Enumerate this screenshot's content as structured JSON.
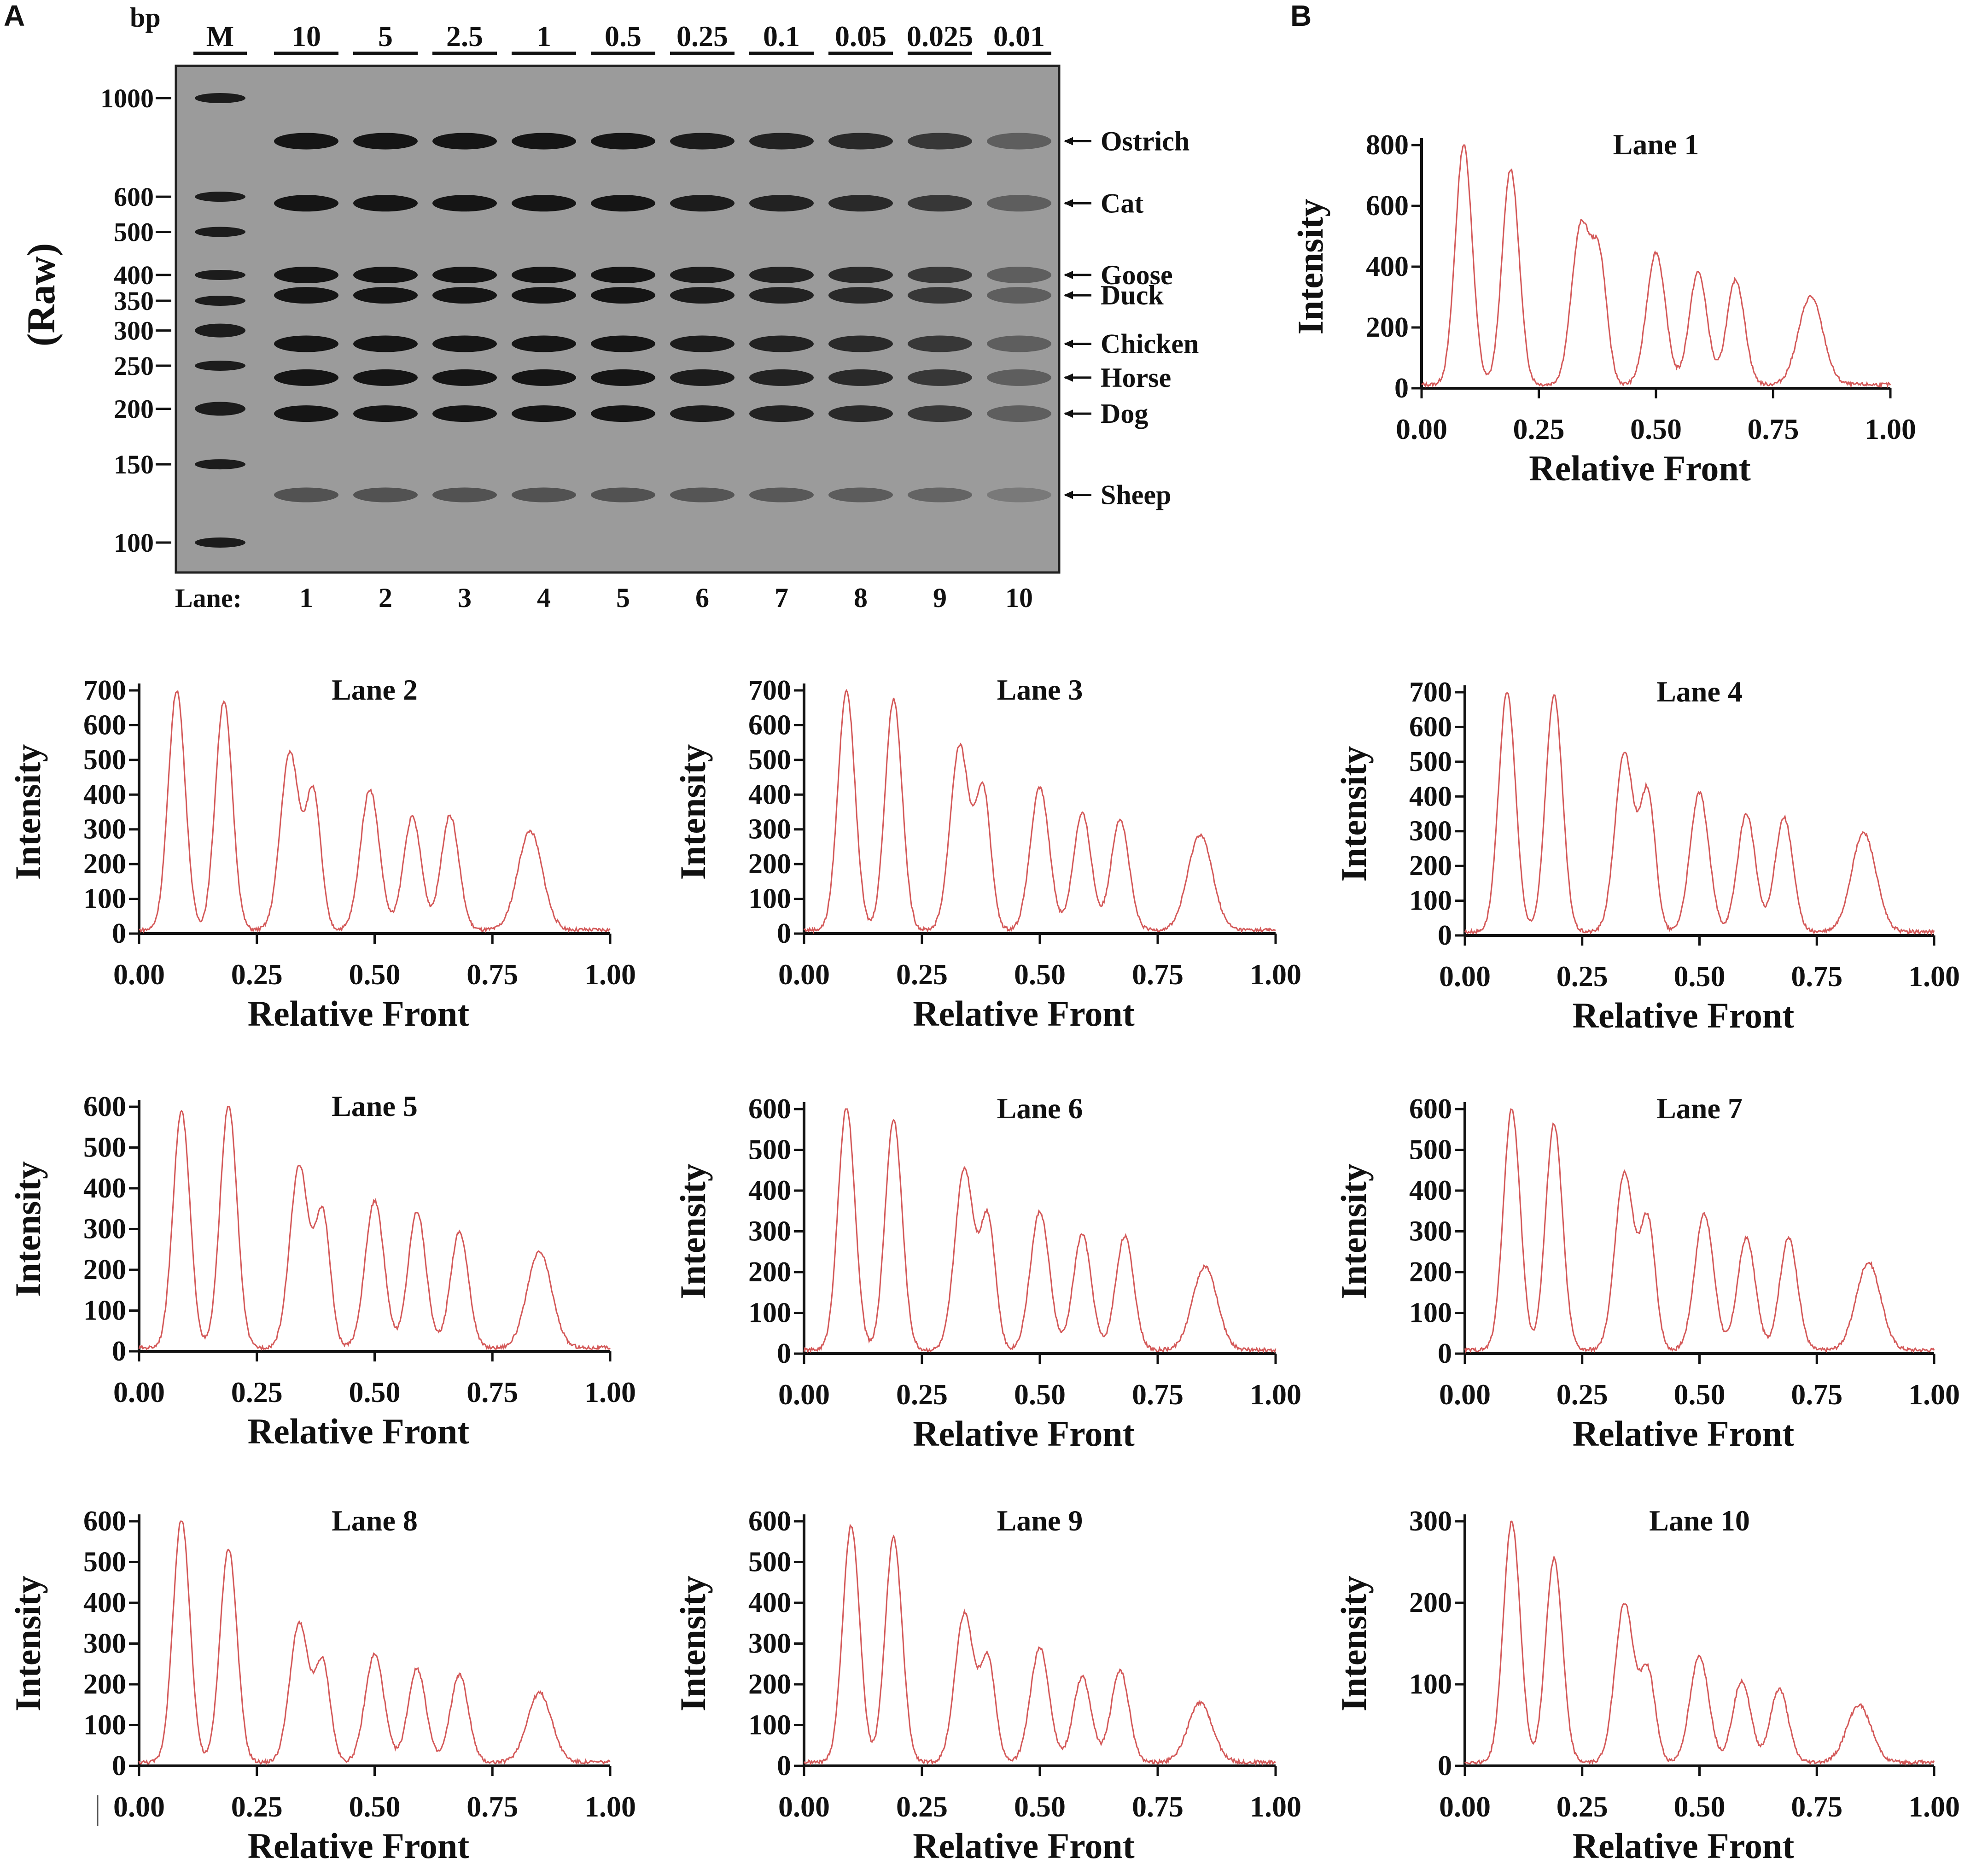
{
  "panel_a": {
    "letter": "A",
    "bp_label": "bp",
    "side_label": "(Raw)",
    "lane_prefix": "Lane:",
    "marker_label": "M",
    "concentrations": [
      "10",
      "5",
      "2.5",
      "1",
      "0.5",
      "0.25",
      "0.1",
      "0.05",
      "0.025",
      "0.01"
    ],
    "lane_numbers": [
      "1",
      "2",
      "3",
      "4",
      "5",
      "6",
      "7",
      "8",
      "9",
      "10"
    ],
    "ladder_bp": [
      1000,
      600,
      500,
      400,
      350,
      300,
      250,
      200,
      150,
      100
    ],
    "ladder_labels": [
      "1000",
      "600",
      "500",
      "400",
      "350",
      "300",
      "250",
      "200",
      "150",
      "100"
    ],
    "species_bands": [
      {
        "name": "Ostrich",
        "bp": 800
      },
      {
        "name": "Cat",
        "bp": 580
      },
      {
        "name": "Goose",
        "bp": 400
      },
      {
        "name": "Duck",
        "bp": 360
      },
      {
        "name": "Chicken",
        "bp": 280
      },
      {
        "name": "Horse",
        "bp": 235
      },
      {
        "name": "Dog",
        "bp": 195
      },
      {
        "name": "Sheep",
        "bp": 128
      }
    ],
    "colors": {
      "gel_background": "#9b9b9b",
      "band": "#151515"
    }
  },
  "panel_b": {
    "letter": "B"
  },
  "chart_data": [
    {
      "type": "line",
      "title": "Lane 1",
      "xlabel": "Relative Front",
      "ylabel": "Intensity",
      "xlim": [
        0,
        1
      ],
      "ylim": [
        0,
        800
      ],
      "xticks": [
        "0.00",
        "0.25",
        "0.50",
        "0.75",
        "1.00"
      ],
      "yticks": [
        "0",
        "200",
        "400",
        "600",
        "800"
      ],
      "peaks": {
        "x": [
          0.09,
          0.19,
          0.34,
          0.38,
          0.5,
          0.59,
          0.67,
          0.83
        ],
        "y": [
          790,
          710,
          520,
          385,
          435,
          370,
          345,
          290
        ]
      }
    },
    {
      "type": "line",
      "title": "Lane 2",
      "xlabel": "Relative Front",
      "ylabel": "Intensity",
      "xlim": [
        0,
        1
      ],
      "ylim": [
        0,
        700
      ],
      "xticks": [
        "0.00",
        "0.25",
        "0.50",
        "0.75",
        "1.00"
      ],
      "yticks": [
        "0",
        "100",
        "200",
        "300",
        "400",
        "500",
        "600",
        "700"
      ],
      "peaks": {
        "x": [
          0.08,
          0.18,
          0.32,
          0.37,
          0.49,
          0.58,
          0.66,
          0.83
        ],
        "y": [
          690,
          660,
          510,
          390,
          405,
          325,
          330,
          285
        ]
      }
    },
    {
      "type": "line",
      "title": "Lane 3",
      "xlabel": "Relative Front",
      "ylabel": "Intensity",
      "xlim": [
        0,
        1
      ],
      "ylim": [
        0,
        700
      ],
      "xticks": [
        "0.00",
        "0.25",
        "0.50",
        "0.75",
        "1.00"
      ],
      "yticks": [
        "0",
        "100",
        "200",
        "300",
        "400",
        "500",
        "600",
        "700"
      ],
      "peaks": {
        "x": [
          0.09,
          0.19,
          0.33,
          0.38,
          0.5,
          0.59,
          0.67,
          0.84
        ],
        "y": [
          690,
          665,
          530,
          400,
          410,
          335,
          320,
          275
        ]
      }
    },
    {
      "type": "line",
      "title": "Lane 4",
      "xlabel": "Relative Front",
      "ylabel": "Intensity",
      "xlim": [
        0,
        1
      ],
      "ylim": [
        0,
        700
      ],
      "xticks": [
        "0.00",
        "0.25",
        "0.50",
        "0.75",
        "1.00"
      ],
      "yticks": [
        "0",
        "100",
        "200",
        "300",
        "400",
        "500",
        "600",
        "700"
      ],
      "peaks": {
        "x": [
          0.09,
          0.19,
          0.34,
          0.39,
          0.5,
          0.6,
          0.68,
          0.85
        ],
        "y": [
          690,
          680,
          515,
          395,
          400,
          340,
          330,
          285
        ]
      }
    },
    {
      "type": "line",
      "title": "Lane 5",
      "xlabel": "Relative Front",
      "ylabel": "Intensity",
      "xlim": [
        0,
        1
      ],
      "ylim": [
        0,
        600
      ],
      "xticks": [
        "0.00",
        "0.25",
        "0.50",
        "0.75",
        "1.00"
      ],
      "yticks": [
        "0",
        "100",
        "200",
        "300",
        "400",
        "500",
        "600"
      ],
      "peaks": {
        "x": [
          0.09,
          0.19,
          0.34,
          0.39,
          0.5,
          0.59,
          0.68,
          0.85
        ],
        "y": [
          580,
          595,
          445,
          325,
          360,
          335,
          285,
          235
        ]
      }
    },
    {
      "type": "line",
      "title": "Lane 6",
      "xlabel": "Relative Front",
      "ylabel": "Intensity",
      "xlim": [
        0,
        1
      ],
      "ylim": [
        0,
        600
      ],
      "xticks": [
        "0.00",
        "0.25",
        "0.50",
        "0.75",
        "1.00"
      ],
      "yticks": [
        "0",
        "100",
        "200",
        "300",
        "400",
        "500",
        "600"
      ],
      "peaks": {
        "x": [
          0.09,
          0.19,
          0.34,
          0.39,
          0.5,
          0.59,
          0.68,
          0.85
        ],
        "y": [
          595,
          565,
          445,
          320,
          340,
          285,
          280,
          205
        ]
      }
    },
    {
      "type": "line",
      "title": "Lane 7",
      "xlabel": "Relative Front",
      "ylabel": "Intensity",
      "xlim": [
        0,
        1
      ],
      "ylim": [
        0,
        600
      ],
      "xticks": [
        "0.00",
        "0.25",
        "0.50",
        "0.75",
        "1.00"
      ],
      "yticks": [
        "0",
        "100",
        "200",
        "300",
        "400",
        "500",
        "600"
      ],
      "peaks": {
        "x": [
          0.1,
          0.19,
          0.34,
          0.39,
          0.51,
          0.6,
          0.69,
          0.86
        ],
        "y": [
          590,
          555,
          435,
          315,
          335,
          275,
          275,
          215
        ]
      }
    },
    {
      "type": "line",
      "title": "Lane 8",
      "xlabel": "Relative Front",
      "ylabel": "Intensity",
      "xlim": [
        0,
        1
      ],
      "ylim": [
        0,
        600
      ],
      "xticks": [
        "0.00",
        "0.25",
        "0.50",
        "0.75",
        "1.00"
      ],
      "yticks": [
        "0",
        "100",
        "200",
        "300",
        "400",
        "500",
        "600"
      ],
      "peaks": {
        "x": [
          0.09,
          0.19,
          0.34,
          0.39,
          0.5,
          0.59,
          0.68,
          0.85
        ],
        "y": [
          595,
          525,
          340,
          240,
          265,
          230,
          215,
          170
        ]
      }
    },
    {
      "type": "line",
      "title": "Lane 9",
      "xlabel": "Relative Front",
      "ylabel": "Intensity",
      "xlim": [
        0,
        1
      ],
      "ylim": [
        0,
        600
      ],
      "xticks": [
        "0.00",
        "0.25",
        "0.50",
        "0.75",
        "1.00"
      ],
      "yticks": [
        "0",
        "100",
        "200",
        "300",
        "400",
        "500",
        "600"
      ],
      "peaks": {
        "x": [
          0.1,
          0.19,
          0.34,
          0.39,
          0.5,
          0.59,
          0.67,
          0.84
        ],
        "y": [
          580,
          550,
          365,
          250,
          280,
          210,
          225,
          145
        ]
      }
    },
    {
      "type": "line",
      "title": "Lane 10",
      "xlabel": "Relative Front",
      "ylabel": "Intensity",
      "xlim": [
        0,
        1
      ],
      "ylim": [
        0,
        300
      ],
      "xticks": [
        "0.00",
        "0.25",
        "0.50",
        "0.75",
        "1.00"
      ],
      "yticks": [
        "0",
        "100",
        "200",
        "300"
      ],
      "peaks": {
        "x": [
          0.1,
          0.19,
          0.34,
          0.39,
          0.5,
          0.59,
          0.67,
          0.84
        ],
        "y": [
          295,
          250,
          195,
          110,
          130,
          100,
          90,
          70
        ]
      }
    }
  ]
}
